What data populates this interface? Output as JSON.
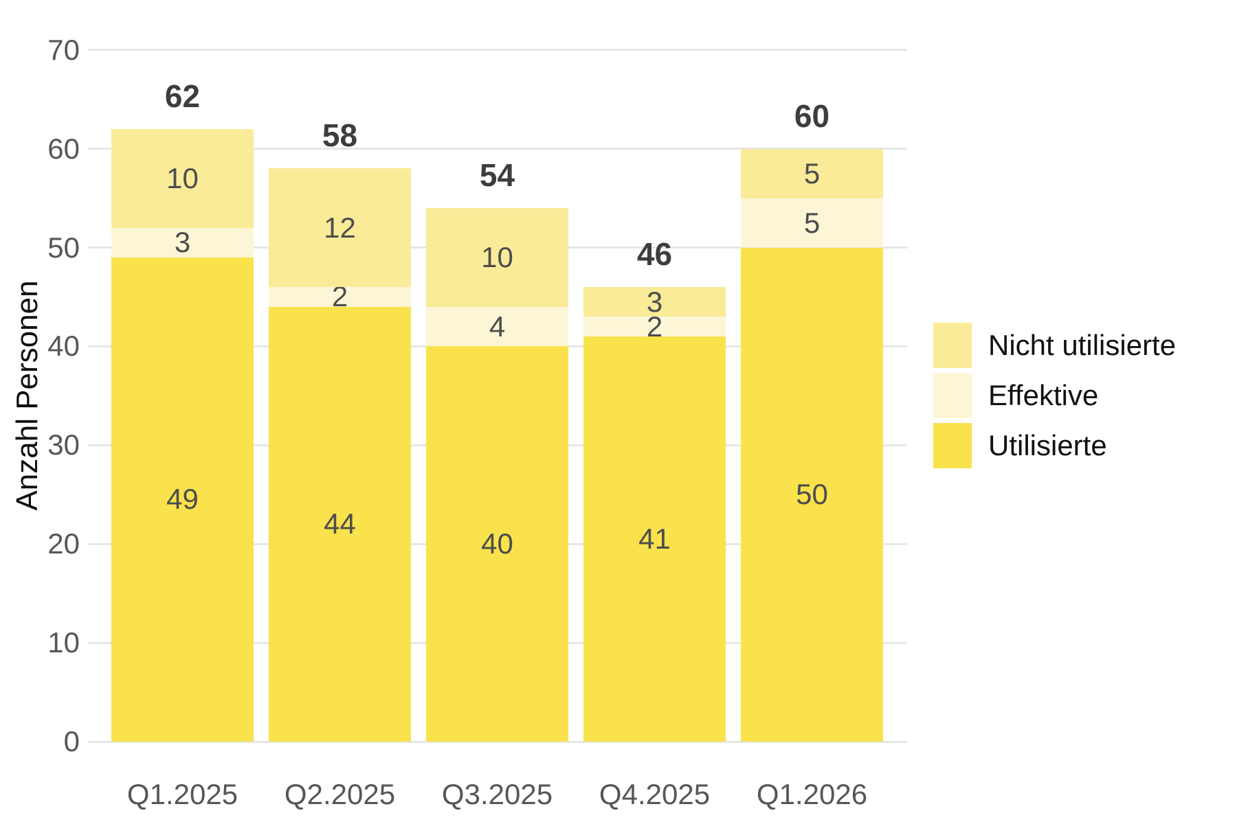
{
  "chart_data": {
    "type": "bar",
    "stacked": true,
    "ylabel": "Anzahl Personen",
    "ylim": [
      0,
      70
    ],
    "yticks": [
      0,
      10,
      20,
      30,
      40,
      50,
      60,
      70
    ],
    "grid": "horizontal",
    "legend_position": "right",
    "categories": [
      "Q1.2025",
      "Q2.2025",
      "Q3.2025",
      "Q4.2025",
      "Q1.2026"
    ],
    "series": [
      {
        "name": "Utilisierte",
        "color": "#F9E24C",
        "values": [
          49,
          44,
          40,
          41,
          50
        ]
      },
      {
        "name": "Effektive",
        "color": "#FCF6D6",
        "values": [
          3,
          2,
          4,
          2,
          5
        ]
      },
      {
        "name": "Nicht utilisierte",
        "color": "#FAEB99",
        "values": [
          10,
          12,
          10,
          3,
          5
        ]
      }
    ],
    "totals": [
      62,
      58,
      54,
      46,
      60
    ],
    "legend": [
      {
        "label": "Nicht utilisierte",
        "color": "#FAEB99"
      },
      {
        "label": "Effektive",
        "color": "#FCF6D6"
      },
      {
        "label": "Utilisierte",
        "color": "#F9E24C"
      }
    ]
  },
  "colors": {
    "background": "#FFFFFF",
    "gridline": "#E6E6E6",
    "tick_label": "#565656",
    "segment_label": "#4D4D4D",
    "total_label": "#3D3D3D",
    "axis_title": "#0F0F0F",
    "legend_text": "#111111"
  }
}
